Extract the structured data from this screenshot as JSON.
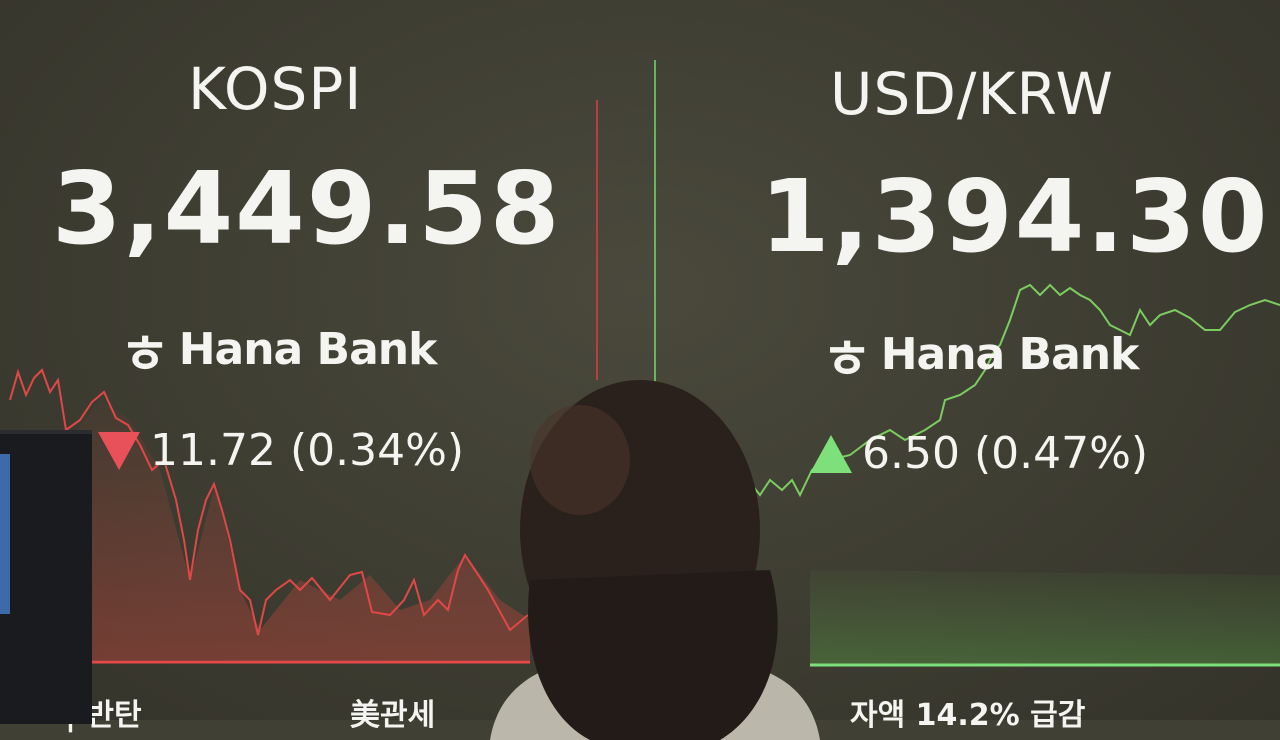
{
  "boards": [
    {
      "title": "KOSPI",
      "value": "3,449.58",
      "brand": "Hana Bank",
      "brand_logo": "hana-bank-logo",
      "direction": "down",
      "change": "11.72 (0.34%)",
      "color": "#e8505a"
    },
    {
      "title": "USD/KRW",
      "value": "1,394.30",
      "brand": "Hana Bank",
      "brand_logo": "hana-bank-logo",
      "direction": "up",
      "change": "6.50 (0.47%)",
      "color": "#7ee07a"
    }
  ],
  "ticker": [
    "| 반탄",
    "美관세",
    "자액 14.2% 급감"
  ]
}
